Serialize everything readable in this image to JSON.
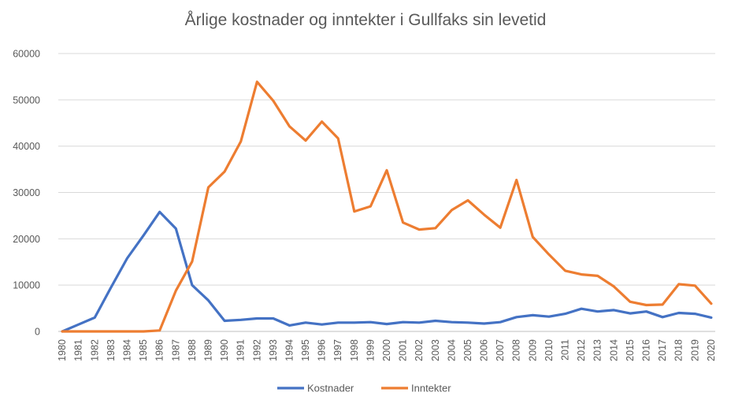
{
  "chart_data": {
    "type": "line",
    "title": "Årlige kostnader og inntekter i Gullfaks sin levetid",
    "xlabel": "",
    "ylabel": "",
    "ylim": [
      0,
      60000
    ],
    "yticks": [
      "0",
      "10000",
      "20000",
      "30000",
      "40000",
      "50000",
      "60000"
    ],
    "grid": true,
    "legend_position": "bottom",
    "categories": [
      "1980",
      "1981",
      "1982",
      "1983",
      "1984",
      "1985",
      "1986",
      "1987",
      "1988",
      "1989",
      "1990",
      "1991",
      "1992",
      "1993",
      "1994",
      "1995",
      "1996",
      "1997",
      "1998",
      "1999",
      "2000",
      "2001",
      "2002",
      "2003",
      "2004",
      "2005",
      "2006",
      "2007",
      "2008",
      "2009",
      "2010",
      "2011",
      "2012",
      "2013",
      "2014",
      "2015",
      "2016",
      "2017",
      "2018",
      "2019",
      "2020"
    ],
    "series": [
      {
        "name": "Kostnader",
        "color": "#4472C4",
        "values": [
          0,
          1500,
          3000,
          9500,
          15800,
          20700,
          25800,
          22200,
          10000,
          6700,
          2300,
          2500,
          2800,
          2800,
          1300,
          1900,
          1500,
          1900,
          1900,
          2000,
          1600,
          2000,
          1900,
          2300,
          2000,
          1900,
          1700,
          2000,
          3100,
          3500,
          3200,
          3800,
          4900,
          4300,
          4600,
          3900,
          4300,
          3100,
          4000,
          3800,
          3000
        ]
      },
      {
        "name": "Inntekter",
        "color": "#ED7D31",
        "values": [
          0,
          0,
          0,
          0,
          0,
          0,
          200,
          8800,
          15100,
          31100,
          34500,
          41000,
          53900,
          49800,
          44300,
          41200,
          45300,
          41700,
          25900,
          27000,
          34800,
          23500,
          22000,
          22300,
          26200,
          28300,
          25200,
          22400,
          32700,
          20400,
          16600,
          13100,
          12300,
          12000,
          9700,
          6400,
          5700,
          5800,
          10200,
          9900,
          6000
        ]
      }
    ]
  }
}
